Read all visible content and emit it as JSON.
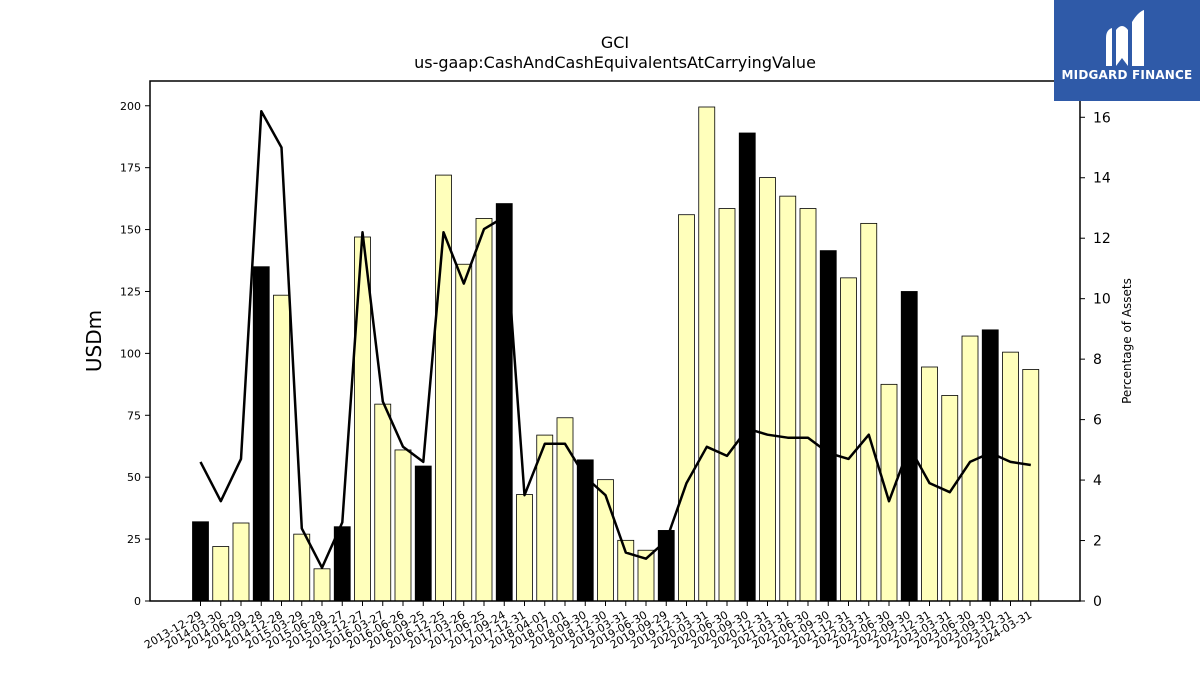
{
  "logo": {
    "text": "MIDGARD FINANCE",
    "icon": "midgard-logo-icon",
    "background": "#2f5aa8"
  },
  "chart_data": {
    "type": "bar",
    "title": "GCI",
    "subtitle": "us-gaap:CashAndCashEquivalentsAtCarryingValue",
    "ylabel": "USDm",
    "y2label": "Percentage of Assets",
    "ylim": [
      0,
      210
    ],
    "y2lim": [
      0,
      17.2
    ],
    "yticks": [
      0,
      25,
      50,
      75,
      100,
      125,
      150,
      175,
      200
    ],
    "y2ticks": [
      0,
      2,
      4,
      6,
      8,
      10,
      12,
      14,
      16
    ],
    "grid": false,
    "categories": [
      "2013-12-29",
      "2014-03-30",
      "2014-06-29",
      "2014-09-28",
      "2014-12-28",
      "2015-03-29",
      "2015-06-28",
      "2015-09-27",
      "2015-12-27",
      "2016-03-27",
      "2016-06-26",
      "2016-09-25",
      "2016-12-25",
      "2017-03-26",
      "2017-06-25",
      "2017-09-24",
      "2017-12-31",
      "2018-04-01",
      "2018-07-01",
      "2018-09-30",
      "2018-12-30",
      "2019-03-31",
      "2019-06-30",
      "2019-09-29",
      "2019-12-31",
      "2020-03-31",
      "2020-06-30",
      "2020-09-30",
      "2020-12-31",
      "2021-03-31",
      "2021-06-30",
      "2021-09-30",
      "2021-12-31",
      "2022-03-31",
      "2022-06-30",
      "2022-09-30",
      "2022-12-31",
      "2023-03-31",
      "2023-06-30",
      "2023-09-30",
      "2023-12-31",
      "2024-03-31"
    ],
    "series": [
      {
        "kind": "bar",
        "values": [
          32,
          22,
          31.5,
          135,
          123.5,
          27,
          13,
          30,
          147,
          79.5,
          61,
          54.5,
          172,
          136,
          154.5,
          160.5,
          43,
          67,
          74,
          57,
          49,
          24.5,
          20.5,
          28.5,
          156,
          199.5,
          158.5,
          189,
          171,
          163.5,
          158.5,
          141.5,
          130.5,
          152.5,
          87.5,
          125,
          94.5,
          83,
          107,
          109.5,
          100.5,
          93.5
        ],
        "highlight_categories": [
          "2013-12-29",
          "2014-09-28",
          "2015-09-27",
          "2016-09-25",
          "2017-09-24",
          "2018-09-30",
          "2019-09-29",
          "2020-09-30",
          "2021-09-30",
          "2022-09-30",
          "2023-09-30"
        ],
        "color": "#ffffbb",
        "highlight_color": "#000000"
      },
      {
        "kind": "line",
        "axis": "right",
        "values": [
          4.6,
          3.3,
          4.7,
          16.2,
          15.0,
          2.4,
          1.1,
          2.6,
          12.2,
          6.6,
          5.1,
          4.6,
          12.2,
          10.5,
          12.3,
          12.7,
          3.5,
          5.2,
          5.2,
          4.1,
          3.5,
          1.6,
          1.4,
          2.0,
          3.9,
          5.1,
          4.8,
          5.7,
          5.5,
          5.4,
          5.4,
          4.9,
          4.7,
          5.5,
          3.3,
          5.1,
          3.9,
          3.6,
          4.6,
          4.9,
          4.6,
          4.5
        ],
        "color": "#000000"
      }
    ]
  }
}
